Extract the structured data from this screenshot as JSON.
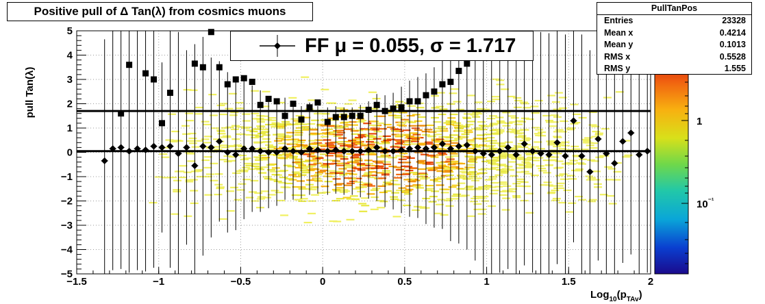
{
  "title": "Positive pull of Δ Tan(λ) from cosmics muons",
  "stats": {
    "name": "PullTanPos",
    "rows": [
      {
        "label": "Entries",
        "value": "23328"
      },
      {
        "label": "Mean x",
        "value": "0.4214"
      },
      {
        "label": "Mean y",
        "value": "0.1013"
      },
      {
        "label": "RMS x",
        "value": "0.5528"
      },
      {
        "label": "RMS y",
        "value": "1.555"
      }
    ]
  },
  "legend": {
    "text": "FF μ =  0.055, σ =   1.717"
  },
  "colors": {
    "marker": "#000000",
    "background": "#ffffff"
  },
  "chart_data": {
    "type": "scatter",
    "title": "Positive pull of Δ Tan(λ) from cosmics muons",
    "xlabel": "Log₁₀(p_TAv)",
    "ylabel": "pull Tan(λ)",
    "xlim": [
      -1.5,
      2
    ],
    "ylim": [
      -5,
      5
    ],
    "xticks": [
      -1.5,
      -1,
      -0.5,
      0,
      0.5,
      1,
      1.5,
      2
    ],
    "yticks": [
      -5,
      -4,
      -3,
      -2,
      -1,
      0,
      1,
      2,
      3,
      4,
      5
    ],
    "colorbar": {
      "scale": "log",
      "labels": [
        "1",
        "10⁻¹"
      ]
    },
    "grid": true,
    "series": [
      {
        "marker": "diamond",
        "x": [
          -1.33,
          -1.28,
          -1.23,
          -1.18,
          -1.13,
          -1.08,
          -1.03,
          -0.98,
          -0.93,
          -0.88,
          -0.83,
          -0.78,
          -0.73,
          -0.68,
          -0.63,
          -0.58,
          -0.53,
          -0.48,
          -0.43,
          -0.38,
          -0.33,
          -0.28,
          -0.23,
          -0.18,
          -0.13,
          -0.08,
          -0.03,
          0.03,
          0.08,
          0.13,
          0.18,
          0.23,
          0.28,
          0.33,
          0.38,
          0.43,
          0.48,
          0.53,
          0.58,
          0.63,
          0.68,
          0.73,
          0.78,
          0.83,
          0.88,
          0.93,
          0.98,
          1.03,
          1.08,
          1.13,
          1.18,
          1.23,
          1.28,
          1.33,
          1.38,
          1.43,
          1.48,
          1.53,
          1.58,
          1.63,
          1.68,
          1.73,
          1.78,
          1.83,
          1.88,
          1.93,
          1.98
        ],
        "y": [
          -0.35,
          0.15,
          0.2,
          0.05,
          0.15,
          0.1,
          0.25,
          0.2,
          0.25,
          -0.05,
          0.2,
          -0.55,
          0.25,
          0.2,
          0.45,
          0.0,
          -0.1,
          0.15,
          0.15,
          0.05,
          0.0,
          0.0,
          0.15,
          0.05,
          0.0,
          0.15,
          0.1,
          0.05,
          0.1,
          0.05,
          0.05,
          0.05,
          0.1,
          0.2,
          0.05,
          0.05,
          0.1,
          0.15,
          0.2,
          0.15,
          0.2,
          0.35,
          0.15,
          0.25,
          0.3,
          0.05,
          -0.05,
          -0.1,
          0.05,
          0.2,
          -0.1,
          0.35,
          0.05,
          -0.05,
          -0.1,
          0.4,
          -0.15,
          1.3,
          -0.15,
          -0.8,
          0.55,
          -0.05,
          -0.45,
          0.45,
          0.8,
          -0.1,
          0.05
        ],
        "yerr": [
          5,
          5,
          5,
          5,
          5,
          5,
          5,
          3.5,
          5,
          5,
          4,
          5,
          4.5,
          3.7,
          3.3,
          3.3,
          3.1,
          2.9,
          2.6,
          2.5,
          2.3,
          2.2,
          2.1,
          2.0,
          1.9,
          1.9,
          1.8,
          1.8,
          1.8,
          1.8,
          1.8,
          1.9,
          2.0,
          2.2,
          2.3,
          2.4,
          2.6,
          2.8,
          2.9,
          3.1,
          3.3,
          3.5,
          3.8,
          4,
          4.3,
          4.5,
          5,
          5,
          5,
          5,
          5,
          5,
          5,
          5,
          5,
          5,
          5,
          5,
          5,
          5,
          5,
          5,
          5,
          5,
          5,
          5,
          5
        ]
      },
      {
        "marker": "square",
        "x": [
          -1.23,
          -1.18,
          -1.08,
          -1.03,
          -0.98,
          -0.93,
          -0.78,
          -0.73,
          -0.68,
          -0.63,
          -0.58,
          -0.53,
          -0.48,
          -0.43,
          -0.38,
          -0.33,
          -0.28,
          -0.23,
          -0.18,
          -0.13,
          -0.08,
          -0.03,
          0.03,
          0.08,
          0.13,
          0.18,
          0.23,
          0.28,
          0.33,
          0.38,
          0.43,
          0.48,
          0.53,
          0.58,
          0.63,
          0.68,
          0.73,
          0.78,
          0.83,
          0.88
        ],
        "y": [
          1.6,
          3.6,
          3.25,
          3.0,
          1.2,
          2.45,
          3.65,
          3.5,
          4.95,
          3.5,
          2.8,
          3.0,
          3.05,
          2.9,
          1.95,
          2.2,
          2.1,
          1.5,
          2.0,
          1.35,
          1.85,
          2.05,
          1.25,
          1.45,
          1.45,
          1.5,
          1.5,
          1.75,
          1.95,
          1.7,
          1.8,
          1.85,
          2.1,
          2.1,
          2.35,
          2.5,
          2.8,
          2.9,
          3.35,
          3.65
        ]
      }
    ],
    "fit_lines": [
      {
        "y": 1.7
      },
      {
        "y": 0.05
      }
    ]
  }
}
